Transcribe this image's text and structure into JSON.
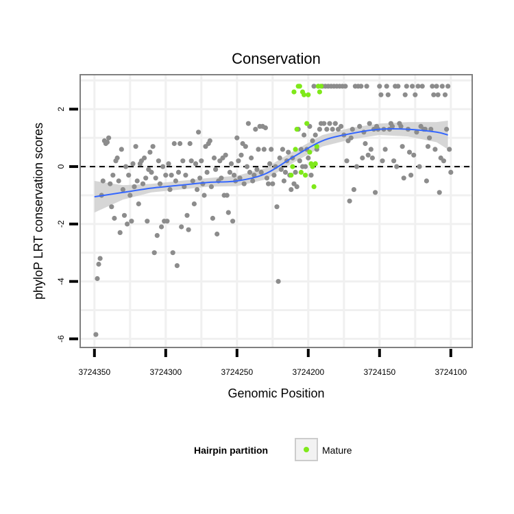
{
  "chart_data": {
    "type": "scatter",
    "title": "Conservation",
    "xlabel": "Genomic Position",
    "ylabel": "phyloP LRT conservation scores",
    "x_reversed": true,
    "xlim": [
      3724360,
      3724085
    ],
    "ylim": [
      -6.3,
      3.2
    ],
    "x_ticks": [
      3724350,
      3724300,
      3724250,
      3724200,
      3724150,
      3724100
    ],
    "y_ticks": [
      -6,
      -4,
      -2,
      0,
      2
    ],
    "grid": true,
    "reference_line_y": 0,
    "legend": {
      "title": "Hairpin partition",
      "position": "bottom",
      "entries": [
        {
          "label": "Mature",
          "color": "#7FE81A"
        }
      ]
    },
    "colors": {
      "other": "#8C8C8C",
      "mature": "#7FE81A",
      "smooth": "#3366FF",
      "band": "#CFCFCF",
      "panel_border": "#7F7F7F",
      "grid": "#F0F0F0"
    },
    "series": [
      {
        "name": "",
        "color": "#8C8C8C",
        "points": [
          [
            3724349,
            -5.85
          ],
          [
            3724348,
            -3.9
          ],
          [
            3724347,
            -3.4
          ],
          [
            3724346,
            -3.2
          ],
          [
            3724345,
            -1.0
          ],
          [
            3724344,
            -0.5
          ],
          [
            3724343,
            0.9
          ],
          [
            3724342,
            0.8
          ],
          [
            3724341,
            0.85
          ],
          [
            3724340,
            1.0
          ],
          [
            3724339,
            -0.6
          ],
          [
            3724338,
            -1.4
          ],
          [
            3724337,
            -0.3
          ],
          [
            3724336,
            -1.8
          ],
          [
            3724335,
            0.2
          ],
          [
            3724334,
            0.3
          ],
          [
            3724333,
            -0.5
          ],
          [
            3724332,
            -2.3
          ],
          [
            3724331,
            0.6
          ],
          [
            3724330,
            -0.8
          ],
          [
            3724329,
            -1.7
          ],
          [
            3724328,
            0.0
          ],
          [
            3724327,
            -2.0
          ],
          [
            3724326,
            -0.3
          ],
          [
            3724325,
            -1.0
          ],
          [
            3724324,
            -1.9
          ],
          [
            3724323,
            0.1
          ],
          [
            3724322,
            -0.7
          ],
          [
            3724321,
            0.7
          ],
          [
            3724320,
            -0.5
          ],
          [
            3724319,
            -1.3
          ],
          [
            3724318,
            0.1
          ],
          [
            3724317,
            0.2
          ],
          [
            3724316,
            -0.6
          ],
          [
            3724315,
            0.3
          ],
          [
            3724314,
            -0.4
          ],
          [
            3724313,
            -1.9
          ],
          [
            3724312,
            -0.1
          ],
          [
            3724311,
            0.5
          ],
          [
            3724310,
            -0.2
          ],
          [
            3724309,
            0.7
          ],
          [
            3724308,
            -3.0
          ],
          [
            3724307,
            -0.4
          ],
          [
            3724306,
            -2.4
          ],
          [
            3724305,
            0.2
          ],
          [
            3724304,
            -0.6
          ],
          [
            3724303,
            -2.1
          ],
          [
            3724302,
            0.0
          ],
          [
            3724301,
            -1.9
          ],
          [
            3724300,
            -0.3
          ],
          [
            3724299,
            -1.9
          ],
          [
            3724298,
            0.1
          ],
          [
            3724297,
            -0.8
          ],
          [
            3724296,
            -0.3
          ],
          [
            3724295,
            -3.0
          ],
          [
            3724294,
            0.8
          ],
          [
            3724293,
            -0.5
          ],
          [
            3724292,
            -3.45
          ],
          [
            3724291,
            -0.2
          ],
          [
            3724290,
            0.8
          ],
          [
            3724289,
            -2.1
          ],
          [
            3724288,
            0.2
          ],
          [
            3724287,
            -0.7
          ],
          [
            3724286,
            -0.3
          ],
          [
            3724285,
            -1.7
          ],
          [
            3724284,
            -2.2
          ],
          [
            3724283,
            0.8
          ],
          [
            3724282,
            0.2
          ],
          [
            3724281,
            -0.5
          ],
          [
            3724280,
            -1.3
          ],
          [
            3724279,
            0.1
          ],
          [
            3724278,
            -0.8
          ],
          [
            3724277,
            1.2
          ],
          [
            3724276,
            -0.4
          ],
          [
            3724275,
            0.2
          ],
          [
            3724274,
            -0.6
          ],
          [
            3724273,
            -1.0
          ],
          [
            3724272,
            0.7
          ],
          [
            3724271,
            -0.2
          ],
          [
            3724270,
            0.8
          ],
          [
            3724269,
            0.9
          ],
          [
            3724268,
            -0.7
          ],
          [
            3724267,
            -1.8
          ],
          [
            3724266,
            0.3
          ],
          [
            3724265,
            -0.1
          ],
          [
            3724264,
            -2.35
          ],
          [
            3724263,
            -0.5
          ],
          [
            3724262,
            0.2
          ],
          [
            3724261,
            -0.4
          ],
          [
            3724260,
            0.3
          ],
          [
            3724259,
            -1.0
          ],
          [
            3724258,
            0.4
          ],
          [
            3724257,
            -1.0
          ],
          [
            3724256,
            -1.6
          ],
          [
            3724255,
            -0.2
          ],
          [
            3724254,
            0.1
          ],
          [
            3724253,
            -1.9
          ],
          [
            3724252,
            -0.3
          ],
          [
            3724251,
            -0.5
          ],
          [
            3724250,
            1.0
          ],
          [
            3724249,
            0.2
          ],
          [
            3724248,
            -0.4
          ],
          [
            3724247,
            0.4
          ],
          [
            3724246,
            0.8
          ],
          [
            3724245,
            -0.6
          ],
          [
            3724244,
            0.7
          ],
          [
            3724243,
            0.0
          ],
          [
            3724242,
            1.5
          ],
          [
            3724241,
            -0.2
          ],
          [
            3724240,
            0.3
          ],
          [
            3724239,
            -0.5
          ],
          [
            3724238,
            -0.3
          ],
          [
            3724237,
            1.3
          ],
          [
            3724236,
            -0.1
          ],
          [
            3724235,
            0.6
          ],
          [
            3724234,
            1.4
          ],
          [
            3724233,
            -0.2
          ],
          [
            3724232,
            1.4
          ],
          [
            3724231,
            0.6
          ],
          [
            3724230,
            1.35
          ],
          [
            3724229,
            -0.4
          ],
          [
            3724228,
            -0.6
          ],
          [
            3724227,
            0.1
          ],
          [
            3724226,
            0.6
          ],
          [
            3724225,
            -0.6
          ],
          [
            3724224,
            -0.3
          ],
          [
            3724223,
            0.0
          ],
          [
            3724222,
            -1.4
          ],
          [
            3724221,
            -4.0
          ],
          [
            3724220,
            0.3
          ],
          [
            3724219,
            -0.1
          ],
          [
            3724218,
            0.6
          ],
          [
            3724217,
            -0.5
          ],
          [
            3724216,
            -0.2
          ],
          [
            3724215,
            0.2
          ],
          [
            3724214,
            0.5
          ],
          [
            3724213,
            -0.3
          ],
          [
            3724212,
            -0.8
          ],
          [
            3724211,
            0.3
          ],
          [
            3724210,
            -0.6
          ],
          [
            3724209,
            -0.2
          ],
          [
            3724208,
            -0.7
          ],
          [
            3724207,
            1.3
          ],
          [
            3724206,
            0.2
          ],
          [
            3724205,
            0.6
          ],
          [
            3724204,
            0.0
          ],
          [
            3724203,
            1.1
          ],
          [
            3724202,
            0.0
          ],
          [
            3724201,
            0.6
          ],
          [
            3724200,
            0.3
          ],
          [
            3724199,
            1.4
          ],
          [
            3724198,
            -0.3
          ],
          [
            3724197,
            0.9
          ],
          [
            3724196,
            2.8
          ],
          [
            3724195,
            1.1
          ],
          [
            3724194,
            0.6
          ],
          [
            3724193,
            2.8
          ],
          [
            3724192,
            1.3
          ],
          [
            3724191,
            1.5
          ],
          [
            3724190,
            2.8
          ],
          [
            3724189,
            1.5
          ],
          [
            3724188,
            2.8
          ],
          [
            3724187,
            1.3
          ],
          [
            3724186,
            2.8
          ],
          [
            3724185,
            1.5
          ],
          [
            3724184,
            2.8
          ],
          [
            3724183,
            1.3
          ],
          [
            3724182,
            2.8
          ],
          [
            3724181,
            1.5
          ],
          [
            3724180,
            2.8
          ],
          [
            3724179,
            1.3
          ],
          [
            3724178,
            2.8
          ],
          [
            3724177,
            1.4
          ],
          [
            3724176,
            2.8
          ],
          [
            3724175,
            1.1
          ],
          [
            3724174,
            2.8
          ],
          [
            3724173,
            0.2
          ],
          [
            3724172,
            0.9
          ],
          [
            3724171,
            -1.2
          ],
          [
            3724170,
            1.0
          ],
          [
            3724169,
            1.3
          ],
          [
            3724168,
            -0.8
          ],
          [
            3724167,
            2.8
          ],
          [
            3724166,
            0.0
          ],
          [
            3724165,
            2.8
          ],
          [
            3724164,
            1.4
          ],
          [
            3724163,
            2.8
          ],
          [
            3724162,
            0.3
          ],
          [
            3724161,
            1.2
          ],
          [
            3724160,
            0.8
          ],
          [
            3724159,
            2.8
          ],
          [
            3724158,
            0.4
          ],
          [
            3724157,
            1.5
          ],
          [
            3724156,
            0.6
          ],
          [
            3724155,
            0.3
          ],
          [
            3724154,
            1.3
          ],
          [
            3724153,
            -0.9
          ],
          [
            3724152,
            1.4
          ],
          [
            3724151,
            1.3
          ],
          [
            3724150,
            2.8
          ],
          [
            3724149,
            2.5
          ],
          [
            3724148,
            0.2
          ],
          [
            3724147,
            1.3
          ],
          [
            3724146,
            0.6
          ],
          [
            3724145,
            2.8
          ],
          [
            3724144,
            2.5
          ],
          [
            3724143,
            1.3
          ],
          [
            3724142,
            1.5
          ],
          [
            3724141,
            1.4
          ],
          [
            3724140,
            0.2
          ],
          [
            3724139,
            2.8
          ],
          [
            3724138,
            0.0
          ],
          [
            3724137,
            2.8
          ],
          [
            3724136,
            1.5
          ],
          [
            3724135,
            1.4
          ],
          [
            3724134,
            0.7
          ],
          [
            3724133,
            -0.4
          ],
          [
            3724132,
            2.5
          ],
          [
            3724131,
            2.8
          ],
          [
            3724130,
            1.3
          ],
          [
            3724129,
            0.5
          ],
          [
            3724128,
            -0.3
          ],
          [
            3724127,
            2.8
          ],
          [
            3724126,
            0.4
          ],
          [
            3724125,
            2.5
          ],
          [
            3724124,
            1.2
          ],
          [
            3724123,
            2.8
          ],
          [
            3724122,
            0.0
          ],
          [
            3724121,
            1.4
          ],
          [
            3724120,
            2.8
          ],
          [
            3724119,
            1.3
          ],
          [
            3724118,
            1.3
          ],
          [
            3724117,
            -0.5
          ],
          [
            3724116,
            0.7
          ],
          [
            3724115,
            1.0
          ],
          [
            3724114,
            1.3
          ],
          [
            3724113,
            2.8
          ],
          [
            3724112,
            2.5
          ],
          [
            3724111,
            0.6
          ],
          [
            3724110,
            2.8
          ],
          [
            3724109,
            2.5
          ],
          [
            3724108,
            -0.9
          ],
          [
            3724107,
            0.3
          ],
          [
            3724106,
            2.8
          ],
          [
            3724105,
            0.2
          ],
          [
            3724104,
            2.5
          ],
          [
            3724103,
            1.3
          ],
          [
            3724102,
            2.8
          ],
          [
            3724101,
            0.6
          ],
          [
            3724100,
            -0.2
          ]
        ]
      },
      {
        "name": "Mature",
        "color": "#7FE81A",
        "points": [
          [
            3724212,
            -0.3
          ],
          [
            3724211,
            0.0
          ],
          [
            3724210,
            2.6
          ],
          [
            3724209,
            0.6
          ],
          [
            3724208,
            1.3
          ],
          [
            3724207,
            2.8
          ],
          [
            3724206,
            2.8
          ],
          [
            3724205,
            -0.2
          ],
          [
            3724204,
            2.6
          ],
          [
            3724203,
            2.5
          ],
          [
            3724202,
            -0.3
          ],
          [
            3724201,
            1.5
          ],
          [
            3724200,
            2.5
          ],
          [
            3724199,
            0.5
          ],
          [
            3724198,
            0.1
          ],
          [
            3724197,
            0.0
          ],
          [
            3724196,
            -0.7
          ],
          [
            3724195,
            0.1
          ],
          [
            3724194,
            0.7
          ],
          [
            3724193,
            2.8
          ],
          [
            3724192,
            2.6
          ],
          [
            3724191,
            2.8
          ]
        ]
      }
    ],
    "smooth": {
      "x": [
        3724350,
        3724330,
        3724310,
        3724290,
        3724270,
        3724250,
        3724230,
        3724210,
        3724190,
        3724170,
        3724150,
        3724130,
        3724110,
        3724102
      ],
      "y": [
        -1.05,
        -0.9,
        -0.75,
        -0.65,
        -0.55,
        -0.5,
        -0.25,
        0.35,
        0.9,
        1.15,
        1.3,
        1.3,
        1.2,
        1.1
      ],
      "lower": [
        -1.6,
        -1.15,
        -0.9,
        -0.8,
        -0.7,
        -0.68,
        -0.45,
        0.15,
        0.7,
        0.95,
        1.1,
        1.05,
        0.85,
        0.6
      ],
      "upper": [
        -0.5,
        -0.65,
        -0.6,
        -0.5,
        -0.4,
        -0.32,
        -0.05,
        0.55,
        1.1,
        1.35,
        1.5,
        1.55,
        1.55,
        1.6
      ]
    }
  }
}
